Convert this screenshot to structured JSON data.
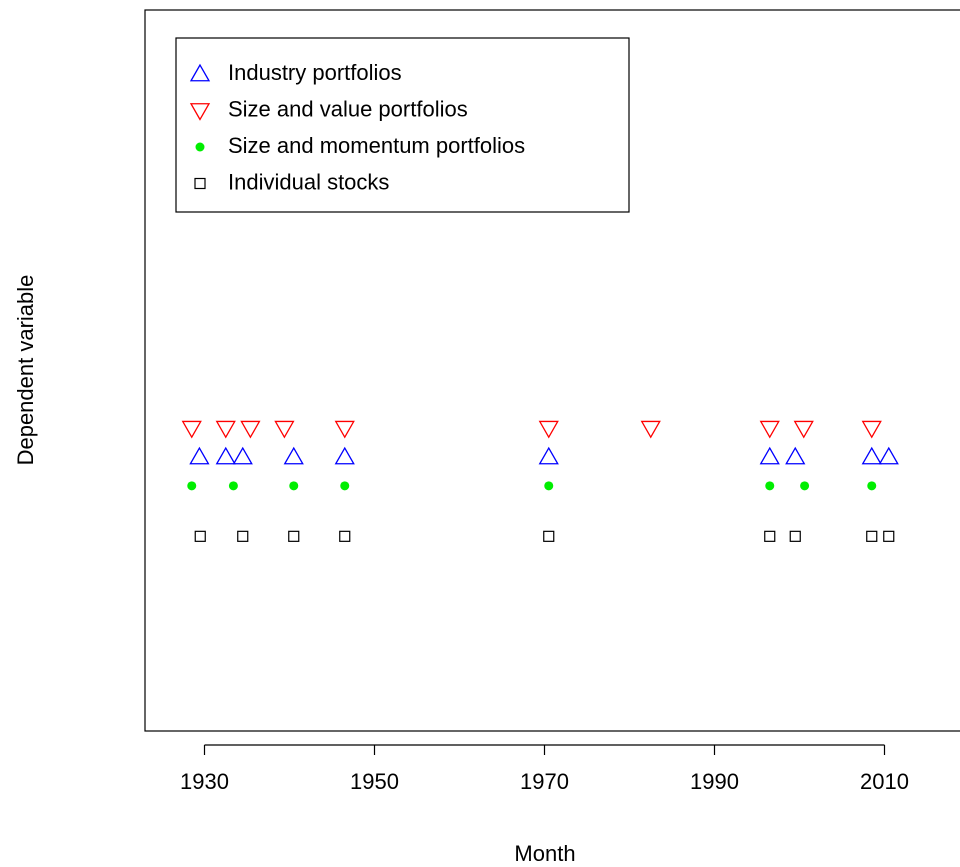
{
  "chart_data": {
    "type": "scatter",
    "x_label": "Month",
    "y_label": "Dependent variable",
    "xlim": [
      1923,
      2019
    ],
    "ylim": [
      0,
      1
    ],
    "xticks": [
      1930,
      1950,
      1970,
      1990,
      2010
    ],
    "legend": "top-left",
    "series": [
      {
        "name": "Industry portfolios",
        "color": "#0000ff",
        "marker": "triangle-up",
        "x": [
          1929.4,
          1932.5,
          1934.5,
          1940.5,
          1946.5,
          1970.5,
          1996.5,
          1999.5,
          2008.5,
          2010.5
        ],
        "y": [
          0.38,
          0.38,
          0.38,
          0.38,
          0.38,
          0.38,
          0.38,
          0.38,
          0.38,
          0.38
        ]
      },
      {
        "name": "Size and value portfolios",
        "color": "#ff0000",
        "marker": "triangle-down",
        "x": [
          1928.5,
          1932.5,
          1935.4,
          1939.4,
          1946.5,
          1970.5,
          1982.5,
          1996.5,
          2000.5,
          2008.5
        ],
        "y": [
          0.42,
          0.42,
          0.42,
          0.42,
          0.42,
          0.42,
          0.42,
          0.42,
          0.42,
          0.42
        ]
      },
      {
        "name": "Size and momentum portfolios",
        "color": "#00ee00",
        "marker": "dot",
        "x": [
          1928.5,
          1933.4,
          1940.5,
          1946.5,
          1970.5,
          1996.5,
          2000.6,
          2008.5
        ],
        "y": [
          0.34,
          0.34,
          0.34,
          0.34,
          0.34,
          0.34,
          0.34,
          0.34
        ]
      },
      {
        "name": "Individual stocks",
        "color": "#000000",
        "marker": "square",
        "x": [
          1929.5,
          1934.5,
          1940.5,
          1946.5,
          1970.5,
          1996.5,
          1999.5,
          2008.5,
          2010.5
        ],
        "y": [
          0.27,
          0.27,
          0.27,
          0.27,
          0.27,
          0.27,
          0.27,
          0.27,
          0.27
        ]
      }
    ]
  }
}
